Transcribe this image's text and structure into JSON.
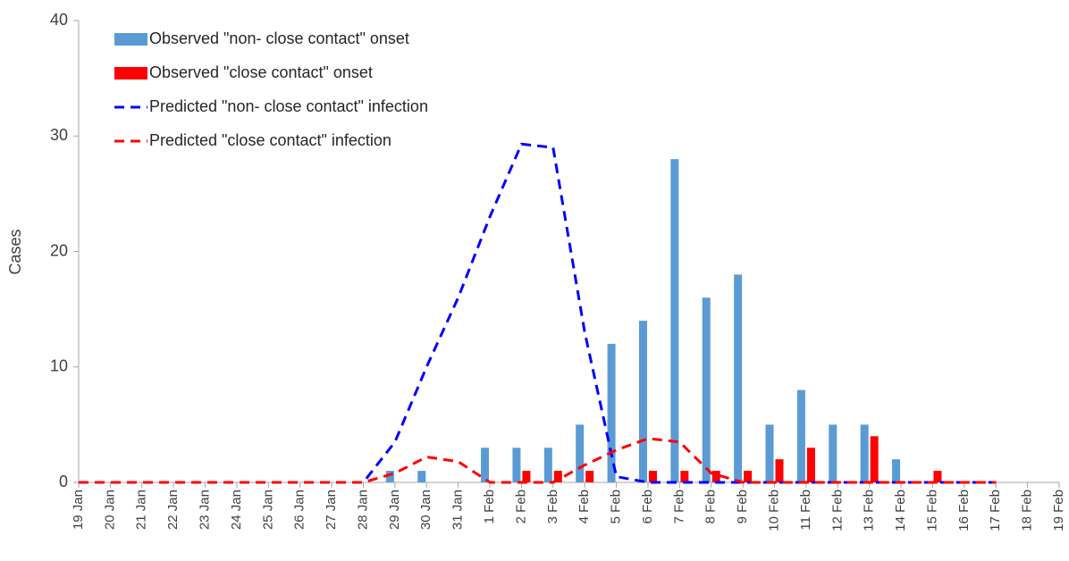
{
  "chart_data": {
    "type": "bar-line",
    "ylabel": "Cases",
    "categories": [
      "19 Jan",
      "20 Jan",
      "21 Jan",
      "22 Jan",
      "23 Jan",
      "24 Jan",
      "25 Jan",
      "26 Jan",
      "27 Jan",
      "28 Jan",
      "29 Jan",
      "30 Jan",
      "31 Jan",
      "1 Feb",
      "2 Feb",
      "3 Feb",
      "4 Feb",
      "5 Feb",
      "6 Feb",
      "7 Feb",
      "8 Feb",
      "9 Feb",
      "10 Feb",
      "11 Feb",
      "12 Feb",
      "13 Feb",
      "14 Feb",
      "15 Feb",
      "16 Feb",
      "17 Feb",
      "18 Feb",
      "19 Feb"
    ],
    "series": [
      {
        "name": "Observed \"non- close contact\" onset",
        "kind": "bar",
        "color": "#5b9bd5",
        "values": [
          0,
          0,
          0,
          0,
          0,
          0,
          0,
          0,
          0,
          0,
          1,
          1,
          0,
          3,
          3,
          3,
          5,
          12,
          14,
          28,
          16,
          18,
          5,
          8,
          5,
          5,
          2,
          0,
          0,
          0,
          null,
          null
        ]
      },
      {
        "name": "Observed \"close contact\" onset",
        "kind": "bar",
        "color": "#ff0000",
        "values": [
          0,
          0,
          0,
          0,
          0,
          0,
          0,
          0,
          0,
          0,
          0,
          0,
          0,
          0,
          1,
          1,
          1,
          0,
          1,
          1,
          1,
          1,
          2,
          3,
          0,
          4,
          0,
          1,
          0,
          0,
          null,
          null
        ]
      },
      {
        "name": "Predicted \"non- close contact\" infection",
        "kind": "line",
        "color": "#0000ff",
        "values": [
          0,
          0,
          0,
          0,
          0,
          0,
          0,
          0,
          0,
          0,
          3.5,
          10,
          16,
          23,
          29.3,
          29,
          13,
          0.5,
          0,
          0,
          0,
          0,
          0,
          0,
          0,
          0,
          0,
          0,
          0,
          0,
          null,
          null
        ]
      },
      {
        "name": "Predicted \"close contact\" infection",
        "kind": "line",
        "color": "#ff0000",
        "values": [
          0,
          0,
          0,
          0,
          0,
          0,
          0,
          0,
          0,
          0,
          0.8,
          2.2,
          1.8,
          0,
          0,
          0,
          1.5,
          2.8,
          3.8,
          3.5,
          0.8,
          0,
          0,
          0,
          0,
          0,
          0,
          0,
          0,
          0,
          null,
          null
        ]
      }
    ],
    "ylim": [
      0,
      40
    ],
    "yticks": [
      0,
      10,
      20,
      30,
      40
    ],
    "grid": false,
    "legend": "upper left"
  }
}
